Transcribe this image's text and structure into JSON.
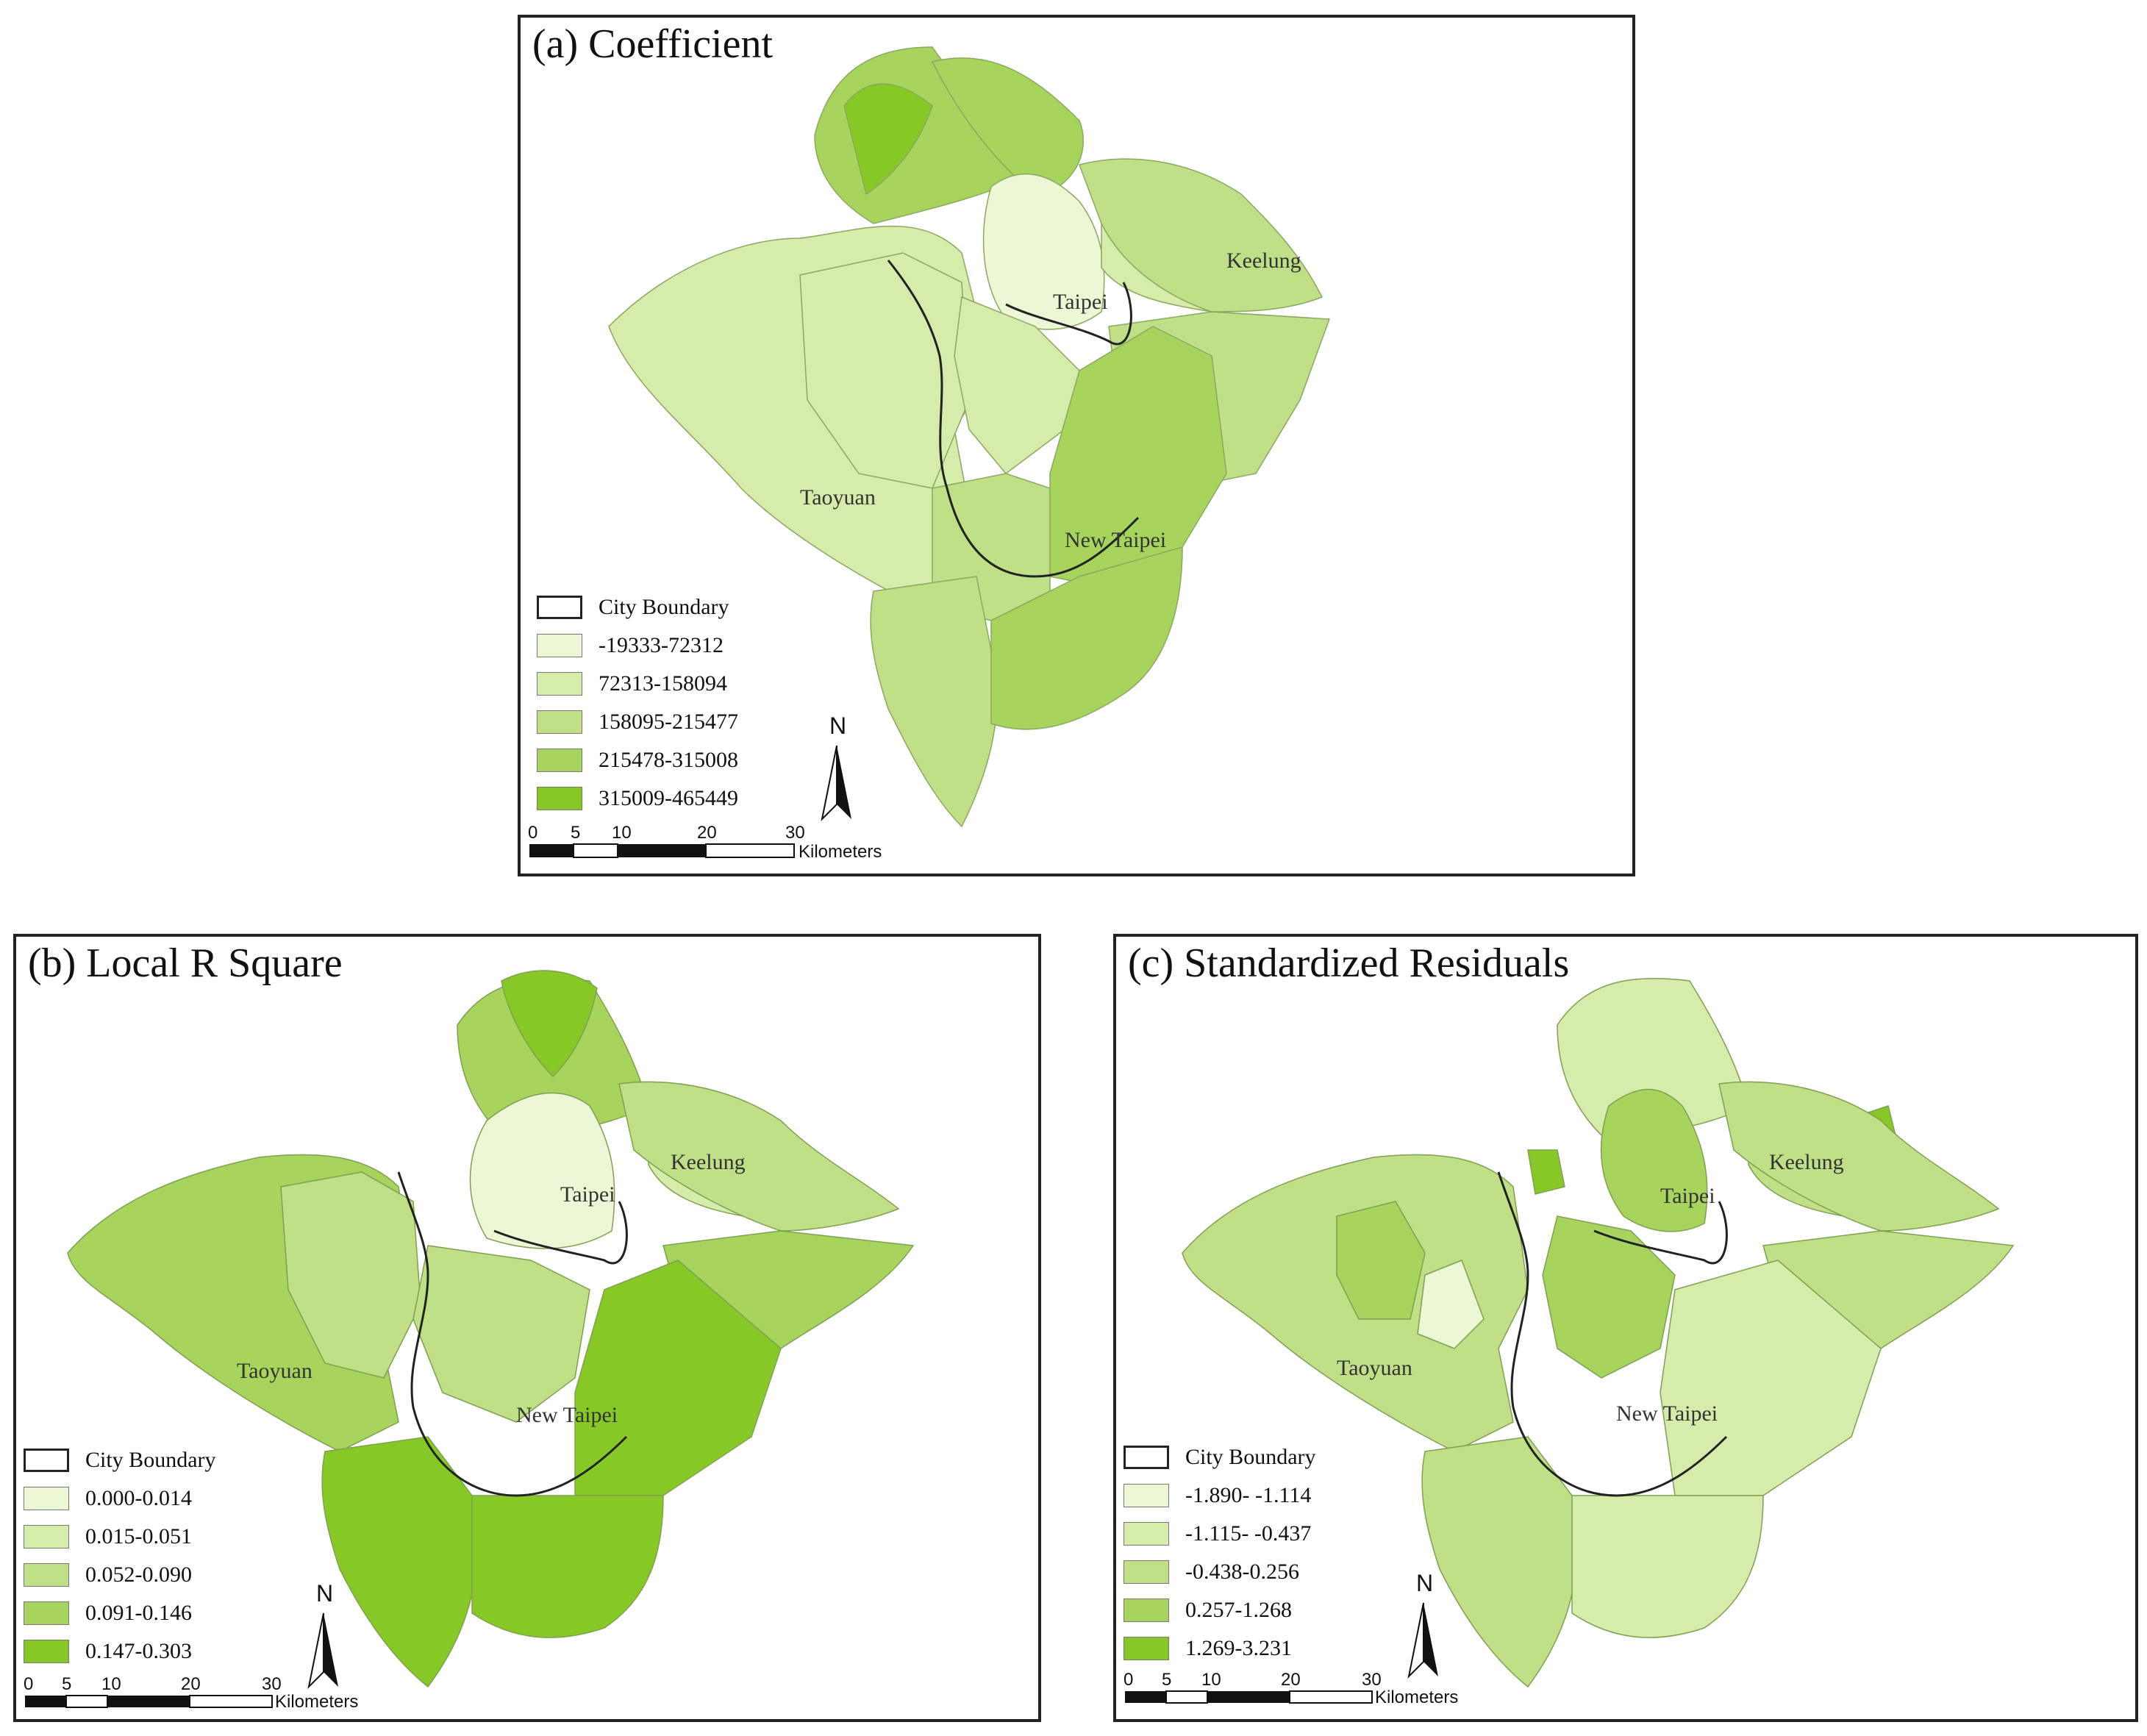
{
  "colors": {
    "class1": "#ecf7d6",
    "class2": "#d6ecaa",
    "class3": "#bfe086",
    "class4": "#a6d45c",
    "class5": "#86c926",
    "boundary": "#222222"
  },
  "north_label": "N",
  "scale_bar": {
    "ticks": [
      "0",
      "5",
      "10",
      "20",
      "30"
    ],
    "unit": "Kilometers"
  },
  "panels": [
    {
      "title": "(a) Coefficient",
      "legend": {
        "boundary_label": "City Boundary",
        "classes": [
          "-19333-72312",
          "72313-158094",
          "158095-215477",
          "215478-315008",
          "315009-465449"
        ]
      },
      "cities": [
        "Taipei",
        "Keelung",
        "Taoyuan",
        "New Taipei"
      ]
    },
    {
      "title": "(b) Local R Square",
      "legend": {
        "boundary_label": "City Boundary",
        "classes": [
          "0.000-0.014",
          "0.015-0.051",
          "0.052-0.090",
          "0.091-0.146",
          "0.147-0.303"
        ]
      },
      "cities": [
        "Taipei",
        "Keelung",
        "Taoyuan",
        "New Taipei"
      ]
    },
    {
      "title": "(c) Standardized Residuals",
      "legend": {
        "boundary_label": "City Boundary",
        "classes": [
          "-1.890- -1.114",
          "-1.115- -0.437",
          "-0.438-0.256",
          "0.257-1.268",
          "1.269-3.231"
        ]
      },
      "cities": [
        "Taipei",
        "Keelung",
        "Taoyuan",
        "New Taipei"
      ]
    }
  ]
}
